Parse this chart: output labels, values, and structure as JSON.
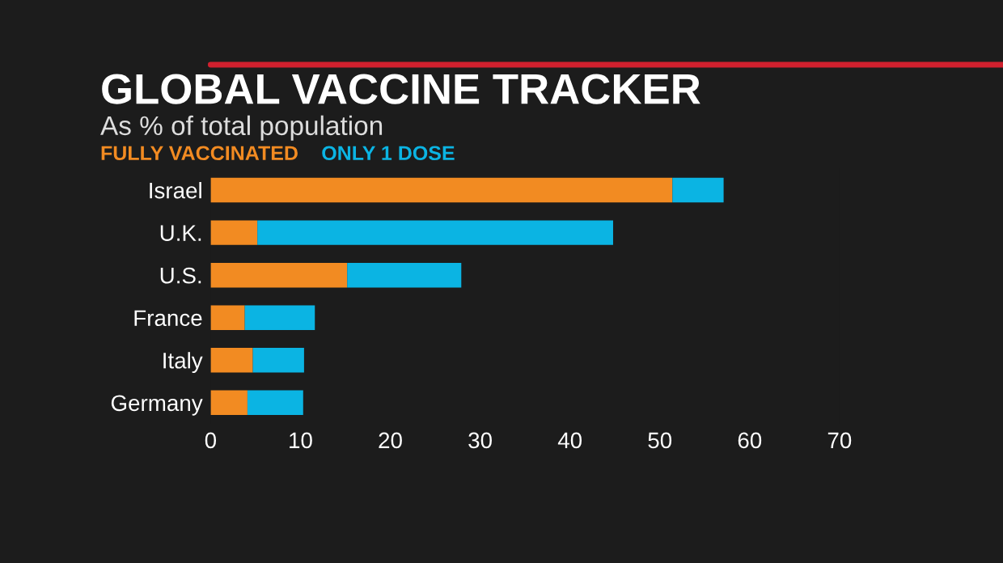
{
  "chart_data": {
    "type": "bar",
    "orientation": "horizontal",
    "stacked": true,
    "title": "GLOBAL VACCINE TRACKER",
    "subtitle": "As % of total population",
    "categories": [
      "Israel",
      "U.K.",
      "U.S.",
      "France",
      "Italy",
      "Germany"
    ],
    "series": [
      {
        "name": "FULLY VACCINATED",
        "color": "#f28b22",
        "values": [
          51.4,
          5.2,
          15.2,
          3.8,
          4.7,
          4.1
        ]
      },
      {
        "name": "ONLY 1 DOSE",
        "color": "#0bb4e3",
        "values": [
          5.7,
          39.6,
          12.7,
          7.8,
          5.7,
          6.2
        ]
      }
    ],
    "xlim": [
      0,
      70
    ],
    "xticks": [
      0,
      10,
      20,
      30,
      40,
      50,
      60,
      70
    ],
    "grid": false,
    "legend": "top left"
  }
}
